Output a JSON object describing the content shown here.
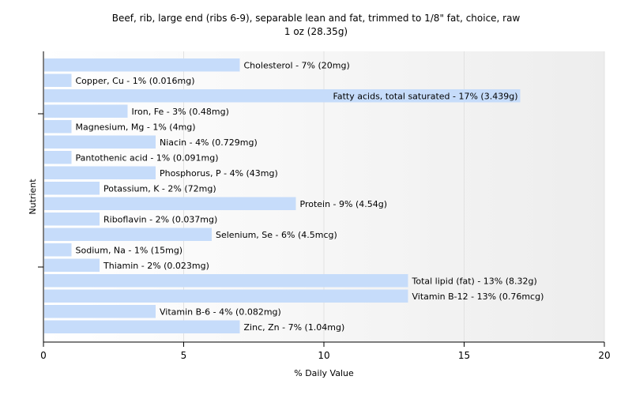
{
  "chart_data": {
    "type": "bar",
    "orientation": "horizontal",
    "title": "Beef, rib, large end (ribs 6-9), separable lean and fat, trimmed to 1/8\" fat, choice, raw",
    "subtitle": "1 oz (28.35g)",
    "xlabel": "% Daily Value",
    "ylabel": "Nutrient",
    "xlim": [
      0,
      20
    ],
    "xticks": [
      "0",
      "5",
      "10",
      "15",
      "20"
    ],
    "grid": true,
    "bar_color": "#c6dcfa",
    "categories": [
      "Cholesterol",
      "Copper, Cu",
      "Fatty acids, total saturated",
      "Iron, Fe",
      "Magnesium, Mg",
      "Niacin",
      "Pantothenic acid",
      "Phosphorus, P",
      "Potassium, K",
      "Protein",
      "Riboflavin",
      "Selenium, Se",
      "Sodium, Na",
      "Thiamin",
      "Total lipid (fat)",
      "Vitamin B-12",
      "Vitamin B-6",
      "Zinc, Zn"
    ],
    "values": [
      7,
      1,
      17,
      3,
      1,
      4,
      1,
      4,
      2,
      9,
      2,
      6,
      1,
      2,
      13,
      13,
      4,
      7
    ],
    "labels": [
      "Cholesterol - 7% (20mg)",
      "Copper, Cu - 1% (0.016mg)",
      "Fatty acids, total saturated - 17% (3.439g)",
      "Iron, Fe - 3% (0.48mg)",
      "Magnesium, Mg - 1% (4mg)",
      "Niacin - 4% (0.729mg)",
      "Pantothenic acid - 1% (0.091mg)",
      "Phosphorus, P - 4% (43mg)",
      "Potassium, K - 2% (72mg)",
      "Protein - 9% (4.54g)",
      "Riboflavin - 2% (0.037mg)",
      "Selenium, Se - 6% (4.5mcg)",
      "Sodium, Na - 1% (15mg)",
      "Thiamin - 2% (0.023mg)",
      "Total lipid (fat) - 13% (8.32g)",
      "Vitamin B-12 - 13% (0.76mcg)",
      "Vitamin B-6 - 4% (0.082mg)",
      "Zinc, Zn - 7% (1.04mg)"
    ]
  }
}
